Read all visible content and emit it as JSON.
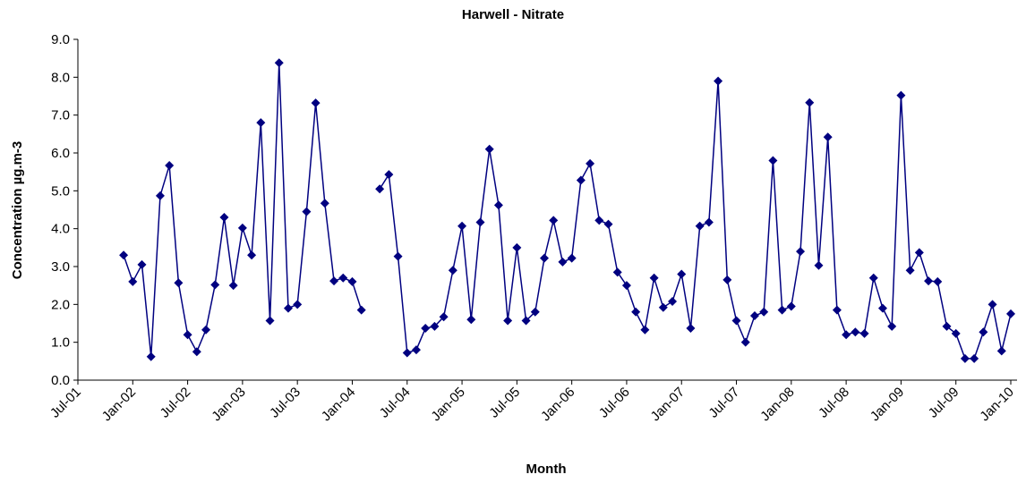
{
  "chart_data": {
    "type": "line",
    "title": "Harwell - Nitrate",
    "x_label": "Month",
    "y_label": "Concentration µg.m-3",
    "categories": [
      "Jul-01",
      null,
      null,
      null,
      null,
      null,
      "Jan-02",
      null,
      null,
      null,
      null,
      null,
      "Jul-02",
      null,
      null,
      null,
      null,
      null,
      "Jan-03",
      null,
      null,
      null,
      null,
      null,
      "Jul-03",
      null,
      null,
      null,
      null,
      null,
      "Jan-04",
      null,
      null,
      null,
      null,
      null,
      "Jul-04",
      null,
      null,
      null,
      null,
      null,
      "Jan-05",
      null,
      null,
      null,
      null,
      null,
      "Jul-05",
      null,
      null,
      null,
      null,
      null,
      "Jan-06",
      null,
      null,
      null,
      null,
      null,
      "Jul-06",
      null,
      null,
      null,
      null,
      null,
      "Jan-07",
      null,
      null,
      null,
      null,
      null,
      "Jul-07",
      null,
      null,
      null,
      null,
      null,
      "Jan-08",
      null,
      null,
      null,
      null,
      null,
      "Jul-08",
      null,
      null,
      null,
      null,
      null,
      "Jan-09",
      null,
      null,
      null,
      null,
      null,
      "Jul-09",
      null,
      null,
      null,
      null,
      null,
      "Jan-10"
    ],
    "values": [
      null,
      null,
      null,
      null,
      null,
      3.3,
      2.6,
      3.05,
      0.62,
      4.87,
      5.67,
      2.57,
      1.2,
      0.75,
      1.33,
      2.52,
      4.3,
      2.5,
      4.02,
      3.3,
      6.8,
      1.57,
      8.38,
      1.9,
      2.0,
      4.45,
      7.32,
      4.67,
      2.62,
      2.7,
      2.6,
      1.85,
      null,
      5.05,
      5.43,
      3.27,
      0.72,
      0.8,
      1.37,
      1.42,
      1.67,
      2.9,
      4.07,
      1.6,
      4.17,
      6.1,
      4.62,
      1.57,
      3.5,
      1.57,
      1.8,
      3.22,
      4.22,
      3.12,
      3.22,
      5.28,
      5.72,
      4.22,
      4.12,
      2.85,
      2.5,
      1.8,
      1.33,
      2.7,
      1.92,
      2.08,
      2.8,
      1.37,
      4.07,
      4.17,
      7.9,
      2.65,
      1.57,
      1.0,
      1.7,
      1.8,
      5.8,
      1.85,
      1.95,
      3.4,
      7.33,
      3.03,
      6.42,
      1.85,
      1.2,
      1.27,
      1.23,
      2.7,
      1.9,
      1.42,
      7.52,
      2.9,
      3.37,
      2.62,
      2.6,
      1.42,
      1.23,
      0.57,
      0.57,
      1.27,
      2.0,
      0.77,
      1.75
    ],
    "color": "#000080",
    "ylim": [
      0,
      9
    ],
    "yticks": [
      {
        "value": 0,
        "label": "0.0"
      },
      {
        "value": 1,
        "label": "1.0"
      },
      {
        "value": 2,
        "label": "2.0"
      },
      {
        "value": 3,
        "label": "3.0"
      },
      {
        "value": 4,
        "label": "4.0"
      },
      {
        "value": 5,
        "label": "5.0"
      },
      {
        "value": 6,
        "label": "6.0"
      },
      {
        "value": 7,
        "label": "7.0"
      },
      {
        "value": 8,
        "label": "8.0"
      },
      {
        "value": 9,
        "label": "9.0"
      }
    ],
    "grid": false
  }
}
